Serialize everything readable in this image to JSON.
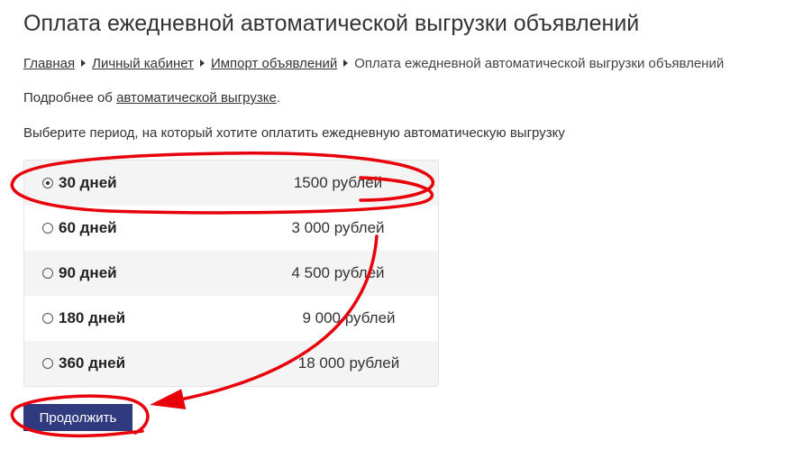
{
  "title": "Оплата ежедневной автоматической выгрузки объявлений",
  "breadcrumb": [
    "Главная",
    "Личный кабинет",
    "Импорт объявлений",
    "Оплата ежедневной автоматической выгрузки объявлений"
  ],
  "more": {
    "prefix": "Подробнее об ",
    "link": "автоматической выгрузке",
    "suffix": "."
  },
  "lead": "Выберите период, на который хотите оплатить ежедневную автоматическую выгрузку",
  "options": [
    {
      "period": "30 дней",
      "price": "1500 рублей",
      "selected": true
    },
    {
      "period": "60 дней",
      "price": "3 000 рублей",
      "selected": false
    },
    {
      "period": "90 дней",
      "price": "4 500 рублей",
      "selected": false
    },
    {
      "period": "180 дней",
      "price": "9 000 рублей",
      "selected": false
    },
    {
      "period": "360 дней",
      "price": "18 000 рублей",
      "selected": false
    }
  ],
  "button": "Продолжить",
  "colors": {
    "button": "#2f3b7e",
    "annotation": "#e8000b"
  }
}
